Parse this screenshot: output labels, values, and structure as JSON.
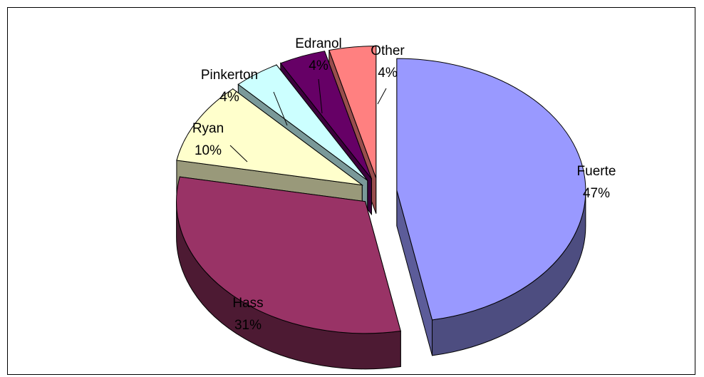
{
  "chart_data": {
    "type": "pie",
    "title": "",
    "variant": "3d-exploded",
    "slices": [
      {
        "name": "Fuerte",
        "value": 47,
        "label": "Fuerte",
        "pct": "47%",
        "color": "#9999FF"
      },
      {
        "name": "Hass",
        "value": 31,
        "label": "Hass",
        "pct": "31%",
        "color": "#993366"
      },
      {
        "name": "Ryan",
        "value": 10,
        "label": "Ryan",
        "pct": "10%",
        "color": "#FFFFCC"
      },
      {
        "name": "Pinkerton",
        "value": 4,
        "label": "Pinkerton",
        "pct": "4%",
        "color": "#CCFFFF"
      },
      {
        "name": "Edranol",
        "value": 4,
        "label": "Edranol",
        "pct": "4%",
        "color": "#660066"
      },
      {
        "name": "Other",
        "value": 4,
        "label": "Other",
        "pct": "4%",
        "color": "#FF8080"
      }
    ]
  }
}
